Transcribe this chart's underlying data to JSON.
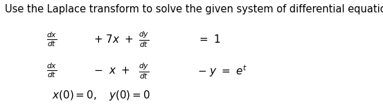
{
  "header": "Use the Laplace transform to solve the given system of differential equations.",
  "header_fontsize": 10.5,
  "math_fontsize": 11,
  "small_fontsize": 8.5,
  "eq1_line1": "$\\frac{dx}{dt}$",
  "eq1_mid": "$+ 7x +$",
  "eq1_frac2": "$\\frac{dy}{dt}$",
  "eq1_rhs": "$= 1$",
  "eq2_frac1": "$\\frac{dx}{dt}$",
  "eq2_mid": "$-\\;\\; x +$",
  "eq2_frac2": "$\\frac{dy}{dt}$",
  "eq2_rhs": "$- y = e^t$",
  "initial": "$x(0) = 0, \\quad y(0) = 0$",
  "background_color": "#ffffff",
  "text_color": "#000000"
}
